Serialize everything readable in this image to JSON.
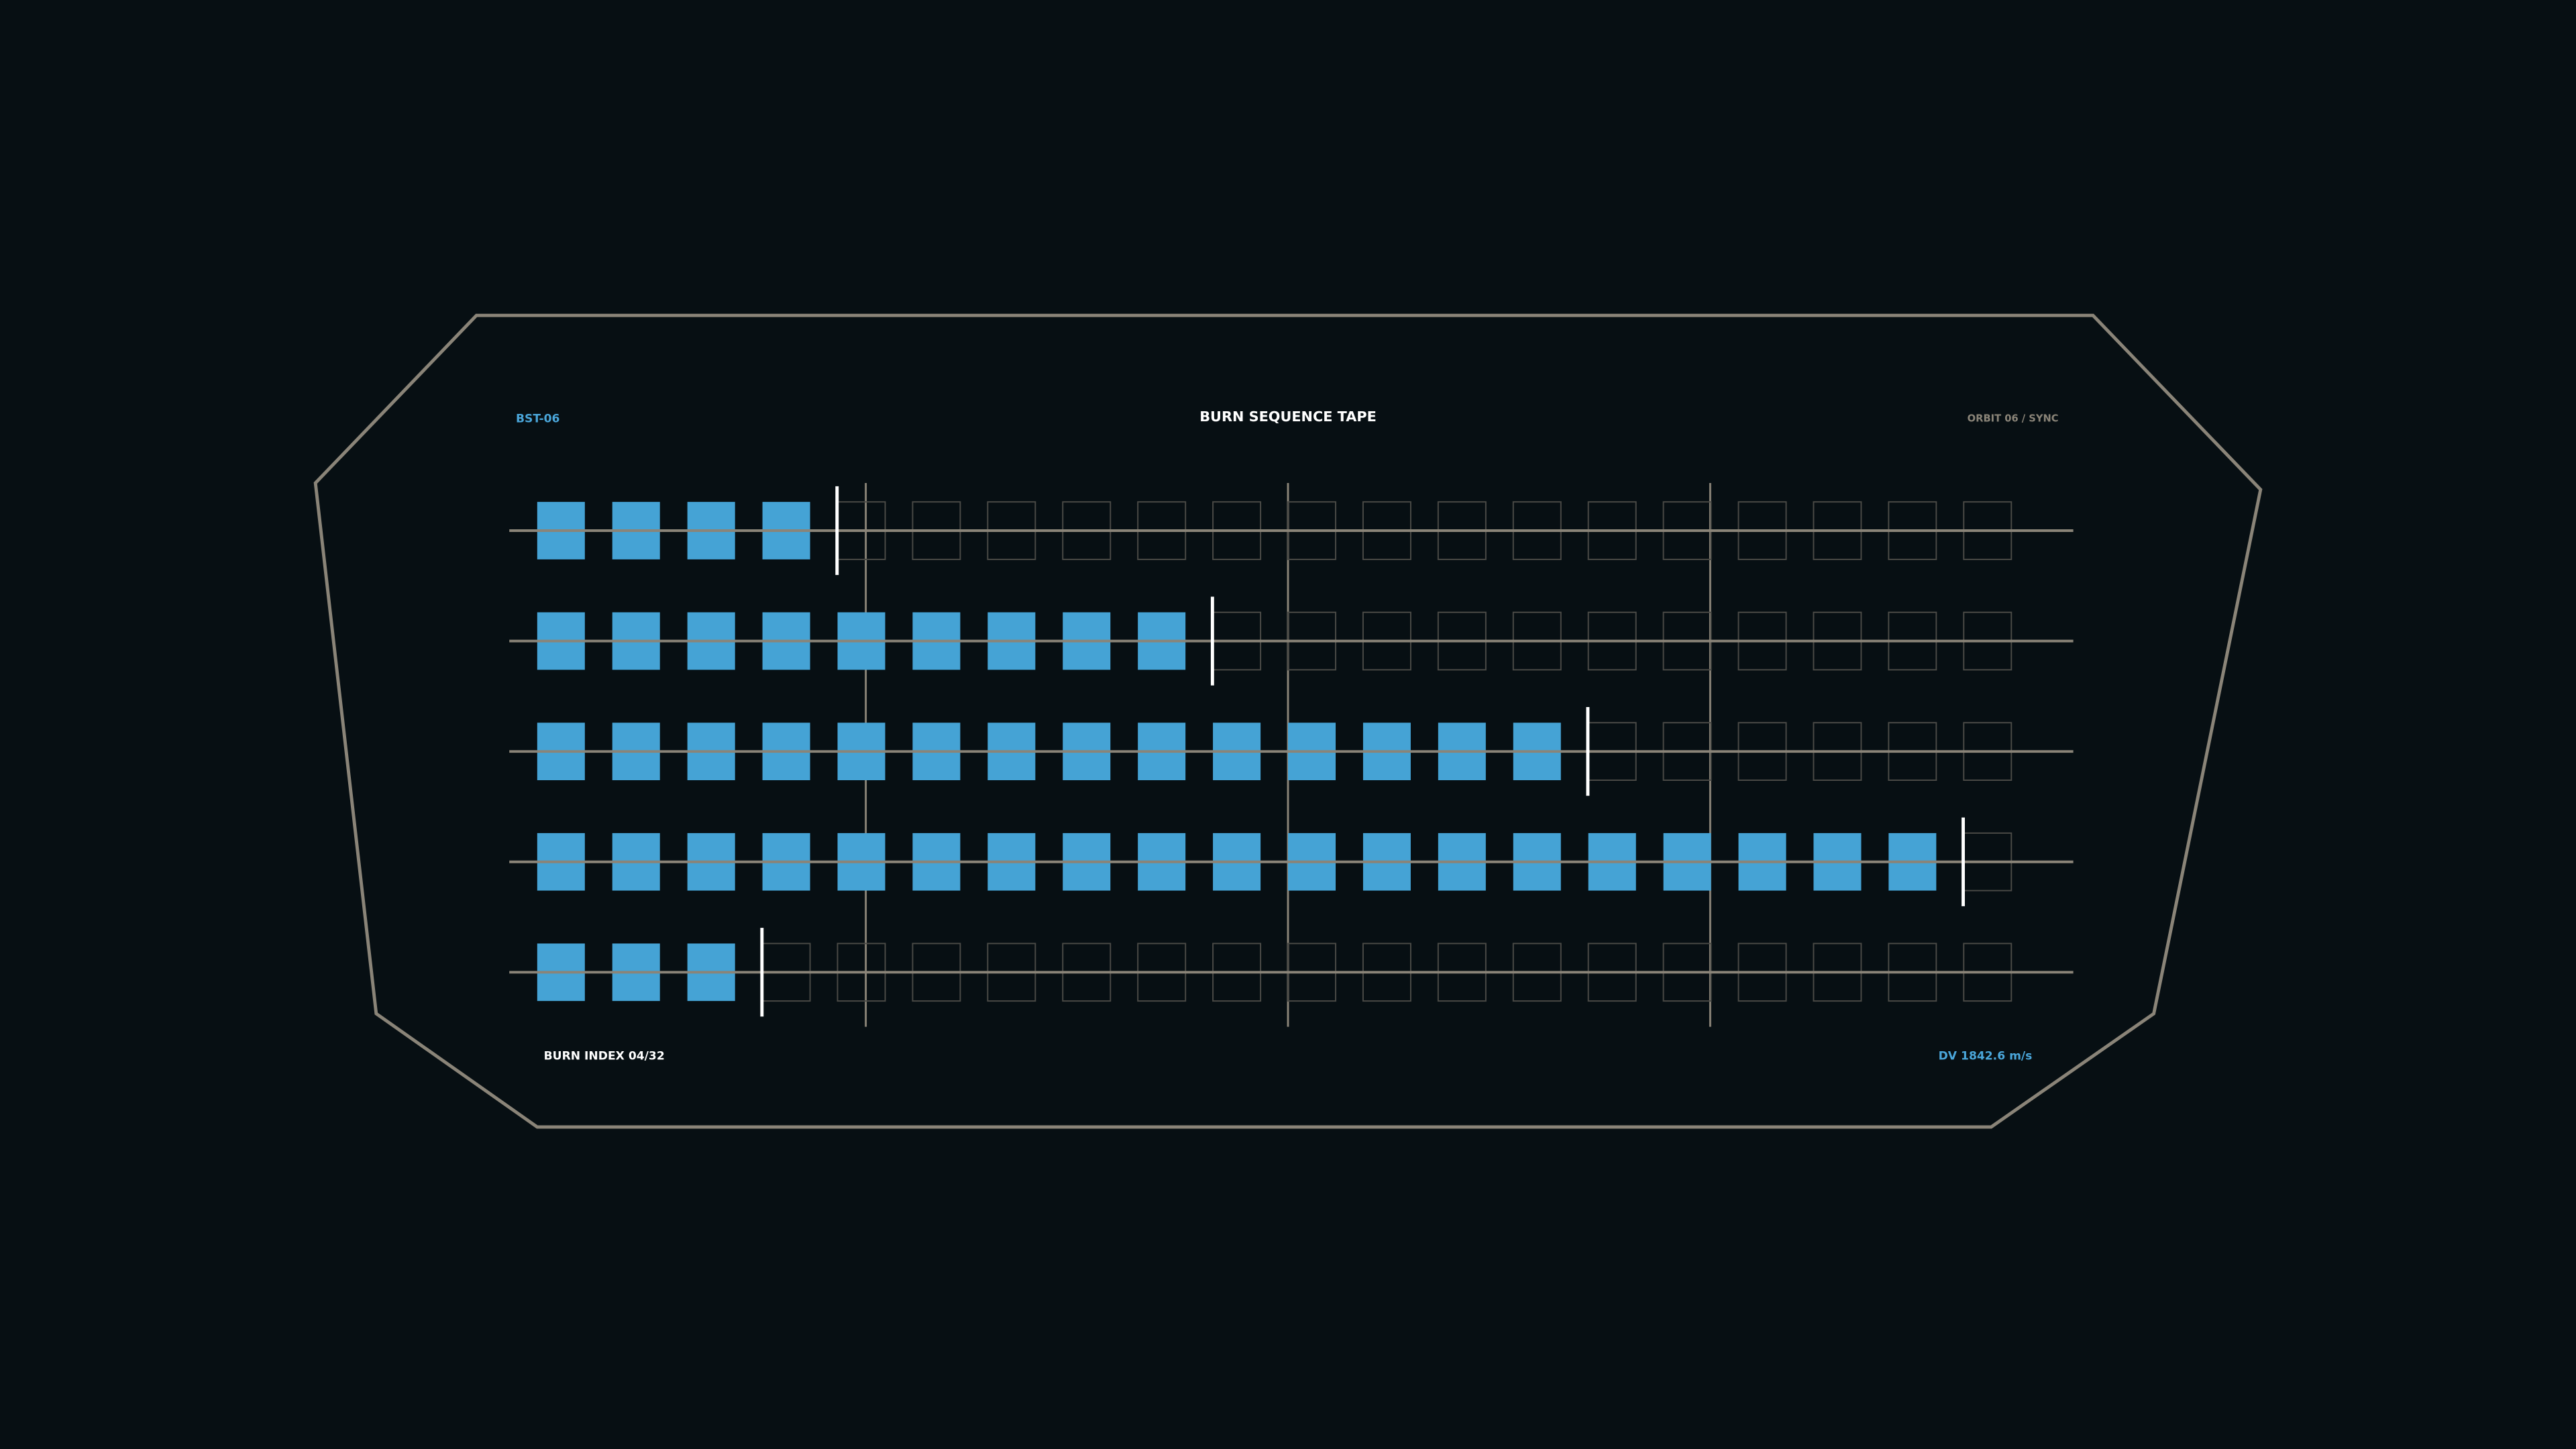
{
  "header": {
    "id": "BST-06",
    "title": "BURN SEQUENCE TAPE",
    "status": "ORBIT 06 / SYNC"
  },
  "footer": {
    "burn_index": "BURN INDEX 04/32",
    "delta_v": "DV 1842.6 m/s"
  },
  "tape": {
    "cells_per_row": 20,
    "filled": [
      4,
      9,
      14,
      19,
      3
    ]
  }
}
